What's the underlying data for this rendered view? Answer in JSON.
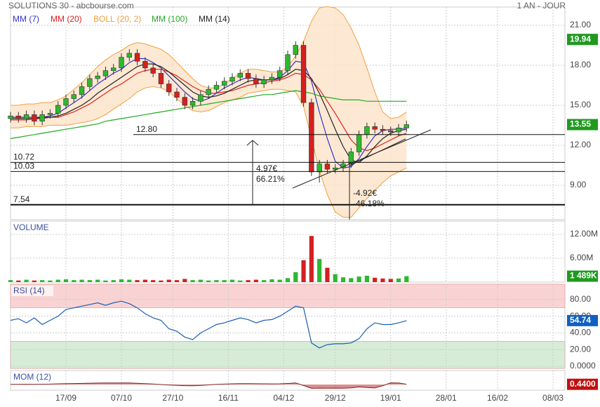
{
  "chart_data": [
    {
      "type": "candlestick",
      "title": "SOLUTIONS 30 - abcbourse.com",
      "subtitle": "1 AN - JOUR",
      "x": [
        0,
        2,
        4,
        6,
        8,
        10,
        12,
        14,
        16,
        18,
        20,
        22,
        24,
        26,
        28,
        30,
        32,
        34,
        36,
        38,
        40,
        42,
        44,
        46,
        48,
        50,
        52,
        54,
        56,
        58,
        60,
        62,
        64,
        66,
        68,
        70,
        72,
        74,
        76,
        78,
        80,
        82,
        84,
        86,
        88,
        90,
        92,
        94,
        96,
        98,
        100
      ],
      "open": [
        14.0,
        14.2,
        14.0,
        14.3,
        13.8,
        14.3,
        14.4,
        15.0,
        15.5,
        15.8,
        16.4,
        17.0,
        17.2,
        17.6,
        17.8,
        18.6,
        18.9,
        18.3,
        17.8,
        17.4,
        16.6,
        16.0,
        15.6,
        15.0,
        15.3,
        15.8,
        16.2,
        16.5,
        16.8,
        17.1,
        17.4,
        17.0,
        16.6,
        16.9,
        17.1,
        17.6,
        18.8,
        19.5,
        15.2,
        10.0,
        10.6,
        10.2,
        10.3,
        10.6,
        11.5,
        12.8,
        13.4,
        13.2,
        13.1,
        13.0,
        13.3
      ],
      "high": [
        14.5,
        14.5,
        14.6,
        14.6,
        14.6,
        14.7,
        15.3,
        15.8,
        16.1,
        16.7,
        17.3,
        17.5,
        17.9,
        18.1,
        18.9,
        19.2,
        19.2,
        18.6,
        18.1,
        17.7,
        16.9,
        16.3,
        15.9,
        15.6,
        16.1,
        16.5,
        16.8,
        17.1,
        17.4,
        17.7,
        17.7,
        17.3,
        17.2,
        17.4,
        17.9,
        19.1,
        19.8,
        19.8,
        15.5,
        10.9,
        10.9,
        10.6,
        10.9,
        11.8,
        13.1,
        13.7,
        13.7,
        13.5,
        13.4,
        13.6,
        13.85
      ],
      "low": [
        13.7,
        13.7,
        13.7,
        13.5,
        13.5,
        14.0,
        14.1,
        14.7,
        15.2,
        15.5,
        16.1,
        16.7,
        16.9,
        17.3,
        17.5,
        18.3,
        18.0,
        17.5,
        17.1,
        16.3,
        15.7,
        15.3,
        14.7,
        14.7,
        15.0,
        15.5,
        15.9,
        16.2,
        16.5,
        16.8,
        16.7,
        16.3,
        16.3,
        16.6,
        16.8,
        17.3,
        18.5,
        14.9,
        9.7,
        9.2,
        9.9,
        9.9,
        10.0,
        10.3,
        11.2,
        12.5,
        12.9,
        12.8,
        12.7,
        12.7,
        13.0
      ],
      "close": [
        14.2,
        14.0,
        14.3,
        13.8,
        14.3,
        14.4,
        15.0,
        15.5,
        15.8,
        16.4,
        17.0,
        17.2,
        17.6,
        17.8,
        18.6,
        18.9,
        18.3,
        17.8,
        17.4,
        16.6,
        16.0,
        15.6,
        15.0,
        15.3,
        15.8,
        16.2,
        16.5,
        16.8,
        17.1,
        17.4,
        17.0,
        16.6,
        16.9,
        17.1,
        17.6,
        18.8,
        19.5,
        15.2,
        10.0,
        10.6,
        10.2,
        10.3,
        10.6,
        11.5,
        12.8,
        13.4,
        13.2,
        13.1,
        13.0,
        13.3,
        13.55
      ],
      "up_color": "#2db82d",
      "down_color": "#d42020",
      "overlays": [
        {
          "name": "MM (7)",
          "color": "#3333cc",
          "values": [
            14.1,
            14.1,
            14.1,
            14.1,
            14.1,
            14.2,
            14.4,
            14.8,
            15.2,
            15.6,
            16.1,
            16.6,
            17.0,
            17.4,
            17.7,
            18.2,
            18.5,
            18.5,
            18.2,
            17.8,
            17.2,
            16.6,
            16.0,
            15.5,
            15.3,
            15.5,
            15.9,
            16.3,
            16.6,
            16.9,
            17.1,
            17.0,
            16.9,
            16.9,
            17.1,
            17.6,
            18.3,
            18.2,
            16.8,
            14.5,
            12.5,
            10.8,
            10.3,
            10.4,
            11.0,
            11.9,
            12.7,
            13.1,
            13.2,
            13.2,
            13.3
          ]
        },
        {
          "name": "MM (20)",
          "color": "#dd2222",
          "values": [
            13.9,
            13.9,
            13.9,
            14.0,
            14.0,
            14.1,
            14.1,
            14.3,
            14.5,
            14.8,
            15.1,
            15.5,
            15.9,
            16.3,
            16.6,
            17.0,
            17.4,
            17.6,
            17.7,
            17.7,
            17.5,
            17.2,
            16.8,
            16.4,
            16.1,
            15.9,
            15.9,
            16.0,
            16.1,
            16.3,
            16.5,
            16.6,
            16.7,
            16.8,
            16.9,
            17.1,
            17.4,
            17.3,
            16.9,
            16.2,
            15.3,
            14.4,
            13.4,
            12.4,
            11.8,
            11.6,
            11.8,
            12.1,
            12.4,
            12.7,
            12.9
          ]
        },
        {
          "name": "BOLL (20, 2)",
          "color": "#f0a040",
          "upper": [
            15.0,
            15.0,
            15.1,
            15.1,
            15.2,
            15.2,
            15.4,
            15.7,
            16.2,
            16.7,
            17.3,
            17.9,
            18.4,
            18.8,
            19.1,
            19.5,
            19.7,
            19.6,
            19.4,
            19.2,
            18.8,
            18.2,
            17.6,
            17.0,
            16.5,
            16.3,
            16.3,
            16.6,
            17.0,
            17.4,
            17.7,
            17.7,
            17.6,
            17.5,
            17.5,
            17.9,
            18.7,
            19.8,
            21.3,
            22.3,
            22.4,
            22.3,
            21.8,
            20.8,
            19.5,
            17.8,
            16.0,
            14.5,
            14.0,
            14.1,
            14.5
          ],
          "lower": [
            13.3,
            13.3,
            13.4,
            13.4,
            13.4,
            13.5,
            13.5,
            13.5,
            13.6,
            13.7,
            13.8,
            14.0,
            14.3,
            14.7,
            15.1,
            15.5,
            16.0,
            16.3,
            16.4,
            16.3,
            16.0,
            15.5,
            15.0,
            14.6,
            14.5,
            14.6,
            14.9,
            15.2,
            15.4,
            15.6,
            15.9,
            16.0,
            16.1,
            16.2,
            16.2,
            16.1,
            16.0,
            14.9,
            12.5,
            10.1,
            8.3,
            7.0,
            6.6,
            6.6,
            7.3,
            8.0,
            8.6,
            9.2,
            9.7,
            10.0,
            10.3
          ]
        },
        {
          "name": "MM (100)",
          "color": "#22aa22",
          "values": [
            12.5,
            12.6,
            12.7,
            12.8,
            12.9,
            13.0,
            13.1,
            13.2,
            13.3,
            13.4,
            13.5,
            13.6,
            13.8,
            13.9,
            14.0,
            14.1,
            14.2,
            14.3,
            14.4,
            14.5,
            14.6,
            14.7,
            14.8,
            14.9,
            15.0,
            15.1,
            15.2,
            15.3,
            15.4,
            15.5,
            15.6,
            15.7,
            15.8,
            15.8,
            15.9,
            16.0,
            16.1,
            16.0,
            15.9,
            15.7,
            15.6,
            15.5,
            15.4,
            15.4,
            15.4,
            15.3,
            15.3,
            15.3,
            15.3,
            15.3,
            15.3
          ]
        },
        {
          "name": "MM (14)",
          "color": "#222222",
          "values": [
            14.0,
            14.0,
            14.0,
            14.0,
            14.1,
            14.1,
            14.2,
            14.4,
            14.7,
            15.0,
            15.4,
            15.9,
            16.3,
            16.7,
            17.1,
            17.5,
            17.9,
            18.1,
            18.1,
            17.9,
            17.5,
            17.0,
            16.5,
            16.0,
            15.7,
            15.6,
            15.7,
            15.9,
            16.2,
            16.5,
            16.8,
            16.9,
            16.9,
            16.9,
            17.0,
            17.3,
            17.7,
            17.6,
            17.0,
            15.9,
            14.6,
            13.2,
            11.9,
            10.9,
            10.7,
            11.2,
            11.9,
            12.5,
            12.9,
            13.1,
            13.2
          ]
        }
      ],
      "xlim": [
        0,
        140
      ],
      "xticks": [
        {
          "value": 14,
          "label": "17/09"
        },
        {
          "value": 28,
          "label": "07/10"
        },
        {
          "value": 41,
          "label": "27/10"
        },
        {
          "value": 55,
          "label": "16/11"
        },
        {
          "value": 69,
          "label": "04/12"
        },
        {
          "value": 82,
          "label": "29/12"
        },
        {
          "value": 96,
          "label": "19/01"
        },
        {
          "value": 110,
          "label": "28/01"
        },
        {
          "value": 123,
          "label": "16/02"
        },
        {
          "value": 137,
          "label": "08/03"
        }
      ],
      "ylim": [
        6.42,
        22.37
      ],
      "yticks": [
        {
          "value": 21,
          "label": "21.00"
        },
        {
          "value": 18,
          "label": "18.00"
        },
        {
          "value": 15,
          "label": "15.00"
        },
        {
          "value": 12,
          "label": "12.00"
        },
        {
          "value": 9,
          "label": "9.00"
        }
      ],
      "levels": [
        {
          "value": 12.8,
          "label": "12.80"
        },
        10.72,
        10.03,
        7.54
      ],
      "annotations": [
        "4.97€",
        "66.21%",
        "-4.92€",
        "-46.18%"
      ],
      "badges": [
        {
          "value": 19.94,
          "color": "#1f9a1f"
        },
        {
          "value": 13.55,
          "color": "#1f9a1f"
        }
      ]
    },
    {
      "type": "bar",
      "title": "VOLUME",
      "values": [
        0.5,
        0.4,
        0.6,
        0.4,
        0.5,
        0.4,
        0.6,
        0.7,
        0.5,
        0.6,
        0.5,
        0.6,
        0.4,
        0.5,
        0.7,
        0.6,
        0.5,
        0.6,
        0.5,
        0.4,
        0.6,
        0.5,
        0.8,
        0.5,
        0.6,
        0.4,
        0.5,
        0.5,
        0.6,
        0.4,
        0.5,
        0.6,
        0.5,
        0.7,
        0.6,
        1.0,
        2.5,
        5.5,
        11.6,
        5.8,
        3.6,
        2.0,
        1.2,
        1.0,
        1.4,
        1.6,
        1.1,
        0.9,
        0.8,
        0.9,
        1.489
      ],
      "ylim": [
        0,
        15.35
      ],
      "yticks": [
        {
          "value": 12,
          "label": "12.00M"
        },
        {
          "value": 6,
          "label": "6.00M"
        }
      ],
      "badges": [
        {
          "value": 1.489,
          "label": "1 489K",
          "color": "#1f9a1f"
        }
      ]
    },
    {
      "type": "line",
      "title": "RSI (14)",
      "color": "#1a5fb4",
      "values": [
        55,
        57,
        52,
        58,
        50,
        55,
        60,
        68,
        70,
        72,
        74,
        76,
        73,
        76,
        78,
        75,
        70,
        63,
        58,
        55,
        45,
        42,
        35,
        32,
        40,
        45,
        50,
        52,
        55,
        58,
        56,
        52,
        55,
        56,
        60,
        66,
        72,
        70,
        28,
        22,
        26,
        27,
        27,
        28,
        33,
        45,
        52,
        50,
        50,
        52,
        54.74
      ],
      "ylim": [
        -2.5,
        98.3
      ],
      "yticks": [
        {
          "value": 80,
          "label": "80.00"
        },
        {
          "value": 60,
          "label": "60.00"
        },
        {
          "value": 40,
          "label": "40.00"
        },
        {
          "value": 20,
          "label": "20.00"
        },
        {
          "value": 0,
          "label": "0.0000"
        }
      ],
      "zones": [
        {
          "from": 70,
          "to": 98.3,
          "color": "#f9d3d3"
        },
        {
          "from": -2.5,
          "to": 30,
          "color": "#d6ecd6"
        }
      ],
      "badges": [
        {
          "value": 54.74,
          "color": "#1060c0"
        }
      ]
    },
    {
      "type": "area",
      "title": "MOM (12)",
      "color": "#c03030",
      "values": [
        0.3,
        0.2,
        0.5,
        0.2,
        0.6,
        0.8,
        1.2,
        1.5,
        1.7,
        2.0,
        2.4,
        2.6,
        2.8,
        2.8,
        2.9,
        2.8,
        2.3,
        1.6,
        0.9,
        0,
        -0.8,
        -1.4,
        -2,
        -2.2,
        -1.5,
        -0.6,
        0.2,
        0.8,
        1.2,
        1.6,
        1.6,
        1.4,
        1.2,
        1.1,
        1.3,
        1.9,
        2.8,
        -1.8,
        -6.8,
        -6.4,
        -6.6,
        -6.4,
        -6.5,
        -5.9,
        -4.2,
        -5.4,
        -6.1,
        -2.0,
        3.0,
        2.7,
        0.44
      ],
      "ylim": [
        -10,
        25
      ],
      "badges": [
        {
          "value": 0.44,
          "label": "0.4400",
          "color": "#c01010"
        }
      ]
    }
  ]
}
